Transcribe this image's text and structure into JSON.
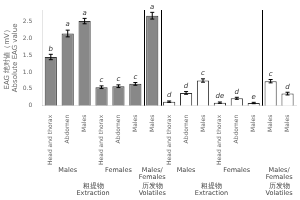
{
  "chart_data": {
    "type": "bar",
    "ylabel": "EAG 绝对値（mV）\nAbsolute EAG value",
    "categories": [
      "Head and thorax",
      "Abdomen",
      "Males",
      "Head and thorax",
      "Abdomen",
      "Males",
      "Males",
      "Head and thorax",
      "Abdomen",
      "Males",
      "Head and thorax",
      "Abdomen",
      "Males",
      "Males",
      "Males"
    ],
    "values": [
      1.45,
      2.15,
      2.52,
      0.55,
      0.58,
      0.65,
      2.68,
      0.12,
      0.38,
      0.75,
      0.09,
      0.22,
      0.08,
      0.73,
      0.36
    ],
    "errors": [
      0.08,
      0.1,
      0.08,
      0.04,
      0.04,
      0.04,
      0.1,
      0.02,
      0.04,
      0.05,
      0.02,
      0.03,
      0.02,
      0.05,
      0.04
    ],
    "colors": [
      "#888888",
      "#888888",
      "#888888",
      "#888888",
      "#888888",
      "#888888",
      "#888888",
      "#ffffff",
      "#ffffff",
      "#ffffff",
      "#ffffff",
      "#ffffff",
      "#ffffff",
      "#ffffff",
      "#ffffff"
    ],
    "annotations": [
      "b",
      "a",
      "a",
      "c",
      "c",
      "c",
      "a",
      "d",
      "d",
      "c",
      "de",
      "d",
      "e",
      "c",
      "d"
    ],
    "subgroups": [
      "Males",
      "Males",
      "Males",
      "Females",
      "Females",
      "Females",
      "Males/\nFemales",
      "Males",
      "Males",
      "Males",
      "Females",
      "Females",
      "Females",
      "Males/\nFemales",
      "Males/\nFemales"
    ],
    "sections": [
      "粗提物\nExtraction",
      "粗提物\nExtraction",
      "粗提物\nExtraction",
      "粗提物\nExtraction",
      "粗提物\nExtraction",
      "粗提物\nExtraction",
      "历发物\nVolatiles",
      "粗提物\nExtraction",
      "粗提物\nExtraction",
      "粗提物\nExtraction",
      "粗提物\nExtraction",
      "粗提物\nExtraction",
      "粗提物\nExtraction",
      "历发物\nVolatiles",
      "历发物\nVolatiles"
    ],
    "ylim": [
      0,
      2.85
    ],
    "yticks": [
      0,
      0.5,
      {
        "value": 1.0,
        "label": "1.0"
      },
      1.5,
      {
        "value": 2.0,
        "label": "2.0"
      },
      2.5
    ],
    "grid": false
  }
}
